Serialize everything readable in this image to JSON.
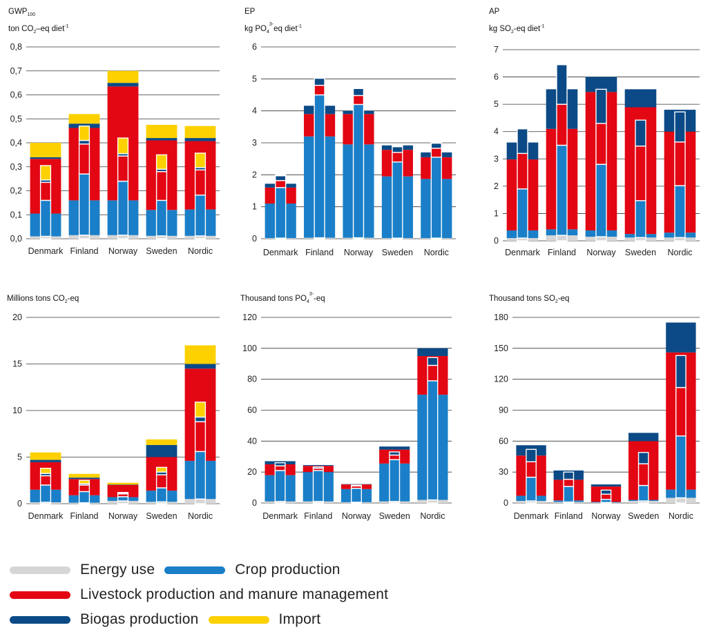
{
  "colors": {
    "energy": "#d6d6d6",
    "crop": "#1a7fc8",
    "livestock": "#e30613",
    "biogas": "#0b4a86",
    "import": "#fdd000"
  },
  "legend": [
    {
      "key": "energy",
      "label": "Energy use"
    },
    {
      "key": "crop",
      "label": "Crop production"
    },
    {
      "key": "livestock",
      "label": "Livestock production and manure management"
    },
    {
      "key": "biogas",
      "label": "Biogas production"
    },
    {
      "key": "import",
      "label": "Import"
    }
  ],
  "chart_data": [
    {
      "type": "bar",
      "stacked": true,
      "header_lines": [
        {
          "main": "GWP",
          "sub": "100",
          "sup": "",
          "rest": ""
        },
        {
          "main": "ton CO",
          "sub": "2",
          "sup": "",
          "rest": "–eq diet",
          "sup2": "-1"
        }
      ],
      "categories": [
        "Denmark",
        "Finland",
        "Norway",
        "Sweden",
        "Nordic"
      ],
      "ylim": [
        0,
        0.8
      ],
      "yticks": [
        "0,0",
        "0,1",
        "0,2",
        "0,3",
        "0,4",
        "0,5",
        "0,6",
        "0,7",
        "0,8"
      ],
      "ytick_values": [
        0,
        0.1,
        0.2,
        0.3,
        0.4,
        0.5,
        0.6,
        0.7,
        0.8
      ],
      "series": [
        {
          "key": "energy",
          "values": [
            0.01,
            0.015,
            0.015,
            0.012,
            0.012
          ]
        },
        {
          "key": "crop",
          "values": [
            0.095,
            0.145,
            0.145,
            0.108,
            0.11
          ]
        },
        {
          "key": "livestock",
          "values": [
            0.228,
            0.302,
            0.475,
            0.29,
            0.285
          ]
        },
        {
          "key": "biogas",
          "values": [
            0.007,
            0.018,
            0.015,
            0.01,
            0.013
          ]
        },
        {
          "key": "import",
          "values": [
            0.06,
            0.04,
            0.05,
            0.055,
            0.05
          ]
        }
      ],
      "inner_series": [
        {
          "key": "energy",
          "values": [
            0.01,
            0.015,
            0.015,
            0.012,
            0.012
          ]
        },
        {
          "key": "crop",
          "values": [
            0.15,
            0.255,
            0.225,
            0.148,
            0.17
          ]
        },
        {
          "key": "livestock",
          "values": [
            0.075,
            0.125,
            0.105,
            0.12,
            0.105
          ]
        },
        {
          "key": "biogas",
          "values": [
            0.01,
            0.015,
            0.01,
            0.01,
            0.01
          ]
        },
        {
          "key": "import",
          "values": [
            0.06,
            0.06,
            0.065,
            0.06,
            0.06
          ]
        }
      ]
    },
    {
      "type": "bar",
      "stacked": true,
      "header_lines": [
        {
          "main": "EP",
          "sub": "",
          "sup": "",
          "rest": ""
        },
        {
          "main": "kg PO",
          "sub": "4",
          "sup": "3-",
          "rest": "eq diet",
          "sup2": "-1"
        }
      ],
      "categories": [
        "Denmark",
        "Finland",
        "Norway",
        "Sweden",
        "Nordic"
      ],
      "ylim": [
        0,
        6
      ],
      "yticks": [
        "0",
        "1",
        "2",
        "3",
        "4",
        "5",
        "6"
      ],
      "ytick_values": [
        0,
        1,
        2,
        3,
        4,
        5,
        6
      ],
      "series": [
        {
          "key": "energy",
          "values": [
            0.02,
            0.03,
            0.03,
            0.02,
            0.02
          ]
        },
        {
          "key": "crop",
          "values": [
            1.08,
            3.17,
            2.92,
            1.93,
            1.85
          ]
        },
        {
          "key": "livestock",
          "values": [
            0.5,
            0.7,
            0.95,
            0.83,
            0.68
          ]
        },
        {
          "key": "biogas",
          "values": [
            0.12,
            0.26,
            0.1,
            0.14,
            0.15
          ]
        },
        {
          "key": "import",
          "values": [
            0,
            0,
            0,
            0,
            0
          ]
        }
      ],
      "inner_series": [
        {
          "key": "energy",
          "values": [
            0.02,
            0.03,
            0.03,
            0.02,
            0.02
          ]
        },
        {
          "key": "crop",
          "values": [
            1.58,
            4.47,
            4.17,
            2.38,
            2.53
          ]
        },
        {
          "key": "livestock",
          "values": [
            0.22,
            0.3,
            0.28,
            0.3,
            0.28
          ]
        },
        {
          "key": "biogas",
          "values": [
            0.15,
            0.22,
            0.22,
            0.18,
            0.16
          ]
        },
        {
          "key": "import",
          "values": [
            0.03,
            0.03,
            0.03,
            0.03,
            0.03
          ]
        }
      ]
    },
    {
      "type": "bar",
      "stacked": true,
      "header_lines": [
        {
          "main": "AP",
          "sub": "",
          "sup": "",
          "rest": ""
        },
        {
          "main": "kg SO",
          "sub": "2",
          "sup": "",
          "rest": "-eq diet",
          "sup2": "-1"
        }
      ],
      "categories": [
        "Denmark",
        "Finland",
        "Norway",
        "Sweden",
        "Nordic"
      ],
      "ylim": [
        0,
        7
      ],
      "yticks": [
        "0",
        "1",
        "2",
        "3",
        "4",
        "5",
        "6",
        "7"
      ],
      "ytick_values": [
        0,
        1,
        2,
        3,
        4,
        5,
        6,
        7
      ],
      "series": [
        {
          "key": "energy",
          "values": [
            0.1,
            0.2,
            0.15,
            0.12,
            0.12
          ]
        },
        {
          "key": "crop",
          "values": [
            0.28,
            0.22,
            0.23,
            0.13,
            0.18
          ]
        },
        {
          "key": "livestock",
          "values": [
            2.6,
            3.68,
            5.07,
            4.64,
            3.7
          ]
        },
        {
          "key": "biogas",
          "values": [
            0.62,
            1.45,
            0.55,
            0.66,
            0.8
          ]
        },
        {
          "key": "import",
          "values": [
            0,
            0,
            0,
            0,
            0
          ]
        }
      ],
      "inner_series": [
        {
          "key": "energy",
          "values": [
            0.1,
            0.2,
            0.15,
            0.12,
            0.12
          ]
        },
        {
          "key": "crop",
          "values": [
            1.8,
            3.3,
            2.65,
            1.35,
            1.9
          ]
        },
        {
          "key": "livestock",
          "values": [
            1.3,
            1.5,
            1.5,
            2.0,
            1.6
          ]
        },
        {
          "key": "biogas",
          "values": [
            0.9,
            1.45,
            1.25,
            0.95,
            1.1
          ]
        },
        {
          "key": "import",
          "values": [
            0,
            0,
            0,
            0,
            0
          ]
        }
      ]
    },
    {
      "type": "bar",
      "stacked": true,
      "header_lines": [
        {
          "main": "Millions tons CO",
          "sub": "2",
          "sup": "",
          "rest": "-eq",
          "sup2": ""
        }
      ],
      "categories": [
        "Denmark",
        "Finland",
        "Norway",
        "Sweden",
        "Nordic"
      ],
      "ylim": [
        0,
        20
      ],
      "yticks": [
        "0",
        "5",
        "10",
        "15",
        "20"
      ],
      "ytick_values": [
        0,
        5,
        10,
        15,
        20
      ],
      "series": [
        {
          "key": "energy",
          "values": [
            0.15,
            0.1,
            0.3,
            0.2,
            0.5
          ]
        },
        {
          "key": "crop",
          "values": [
            1.35,
            0.8,
            0.4,
            1.2,
            4.1
          ]
        },
        {
          "key": "livestock",
          "values": [
            2.95,
            1.75,
            1.3,
            3.6,
            9.9
          ]
        },
        {
          "key": "biogas",
          "values": [
            0.25,
            0.15,
            0.05,
            1.3,
            0.5
          ]
        },
        {
          "key": "import",
          "values": [
            0.8,
            0.4,
            0.2,
            0.6,
            2.0
          ]
        }
      ],
      "inner_series": [
        {
          "key": "energy",
          "values": [
            0.15,
            0.1,
            0.3,
            0.2,
            0.5
          ]
        },
        {
          "key": "crop",
          "values": [
            1.85,
            1.2,
            0.45,
            1.5,
            5.1
          ]
        },
        {
          "key": "livestock",
          "values": [
            1.0,
            0.7,
            0.3,
            1.4,
            3.2
          ]
        },
        {
          "key": "biogas",
          "values": [
            0.25,
            0.15,
            0.05,
            0.3,
            0.5
          ]
        },
        {
          "key": "import",
          "values": [
            0.55,
            0.35,
            0.1,
            0.5,
            1.6
          ]
        }
      ]
    },
    {
      "type": "bar",
      "stacked": true,
      "header_lines": [
        {
          "main": "Thousand tons PO",
          "sub": "4",
          "sup": "3-",
          "rest": "-eq",
          "sup2": ""
        }
      ],
      "categories": [
        "Denmark",
        "Finland",
        "Norway",
        "Sweden",
        "Nordic"
      ],
      "ylim": [
        0,
        120
      ],
      "yticks": [
        "0",
        "20",
        "40",
        "60",
        "80",
        "100",
        "120"
      ],
      "ytick_values": [
        0,
        20,
        40,
        60,
        80,
        100,
        120
      ],
      "series": [
        {
          "key": "energy",
          "values": [
            1,
            1,
            0.5,
            1,
            2
          ]
        },
        {
          "key": "crop",
          "values": [
            17,
            19,
            8.5,
            24.5,
            68
          ]
        },
        {
          "key": "livestock",
          "values": [
            7,
            4,
            3,
            9,
            25
          ]
        },
        {
          "key": "biogas",
          "values": [
            2,
            0.5,
            0.2,
            2,
            5
          ]
        },
        {
          "key": "import",
          "values": [
            0,
            0,
            0,
            0,
            0
          ]
        }
      ],
      "inner_series": [
        {
          "key": "energy",
          "values": [
            1,
            1,
            0.5,
            1,
            2
          ]
        },
        {
          "key": "crop",
          "values": [
            20,
            20,
            9,
            27,
            77
          ]
        },
        {
          "key": "livestock",
          "values": [
            3,
            1.5,
            1.5,
            3,
            10
          ]
        },
        {
          "key": "biogas",
          "values": [
            2,
            0.8,
            0.5,
            2,
            5
          ]
        },
        {
          "key": "import",
          "values": [
            0,
            0,
            0,
            0,
            0
          ]
        }
      ]
    },
    {
      "type": "bar",
      "stacked": true,
      "header_lines": [
        {
          "main": "Thousand tons SO",
          "sub": "2",
          "sup": "",
          "rest": "-eq",
          "sup2": ""
        }
      ],
      "categories": [
        "Denmark",
        "Finland",
        "Norway",
        "Sweden",
        "Nordic"
      ],
      "ylim": [
        0,
        180
      ],
      "yticks": [
        "0",
        "30",
        "60",
        "90",
        "120",
        "150",
        "180"
      ],
      "ytick_values": [
        0,
        30,
        60,
        90,
        120,
        150,
        180
      ],
      "series": [
        {
          "key": "energy",
          "values": [
            2,
            1,
            0.5,
            2,
            5
          ]
        },
        {
          "key": "crop",
          "values": [
            5,
            1.5,
            0.5,
            1,
            8
          ]
        },
        {
          "key": "livestock",
          "values": [
            39,
            20,
            15,
            57,
            133
          ]
        },
        {
          "key": "biogas",
          "values": [
            10,
            9,
            2,
            8,
            29
          ]
        },
        {
          "key": "import",
          "values": [
            0,
            0,
            0,
            0,
            0
          ]
        }
      ],
      "inner_series": [
        {
          "key": "energy",
          "values": [
            2,
            1,
            0.5,
            2,
            5
          ]
        },
        {
          "key": "crop",
          "values": [
            23,
            15,
            3,
            15,
            60
          ]
        },
        {
          "key": "livestock",
          "values": [
            15,
            7,
            5,
            21,
            47
          ]
        },
        {
          "key": "biogas",
          "values": [
            12,
            7,
            4,
            11,
            31
          ]
        },
        {
          "key": "import",
          "values": [
            0,
            0,
            0,
            0,
            0
          ]
        }
      ]
    }
  ]
}
